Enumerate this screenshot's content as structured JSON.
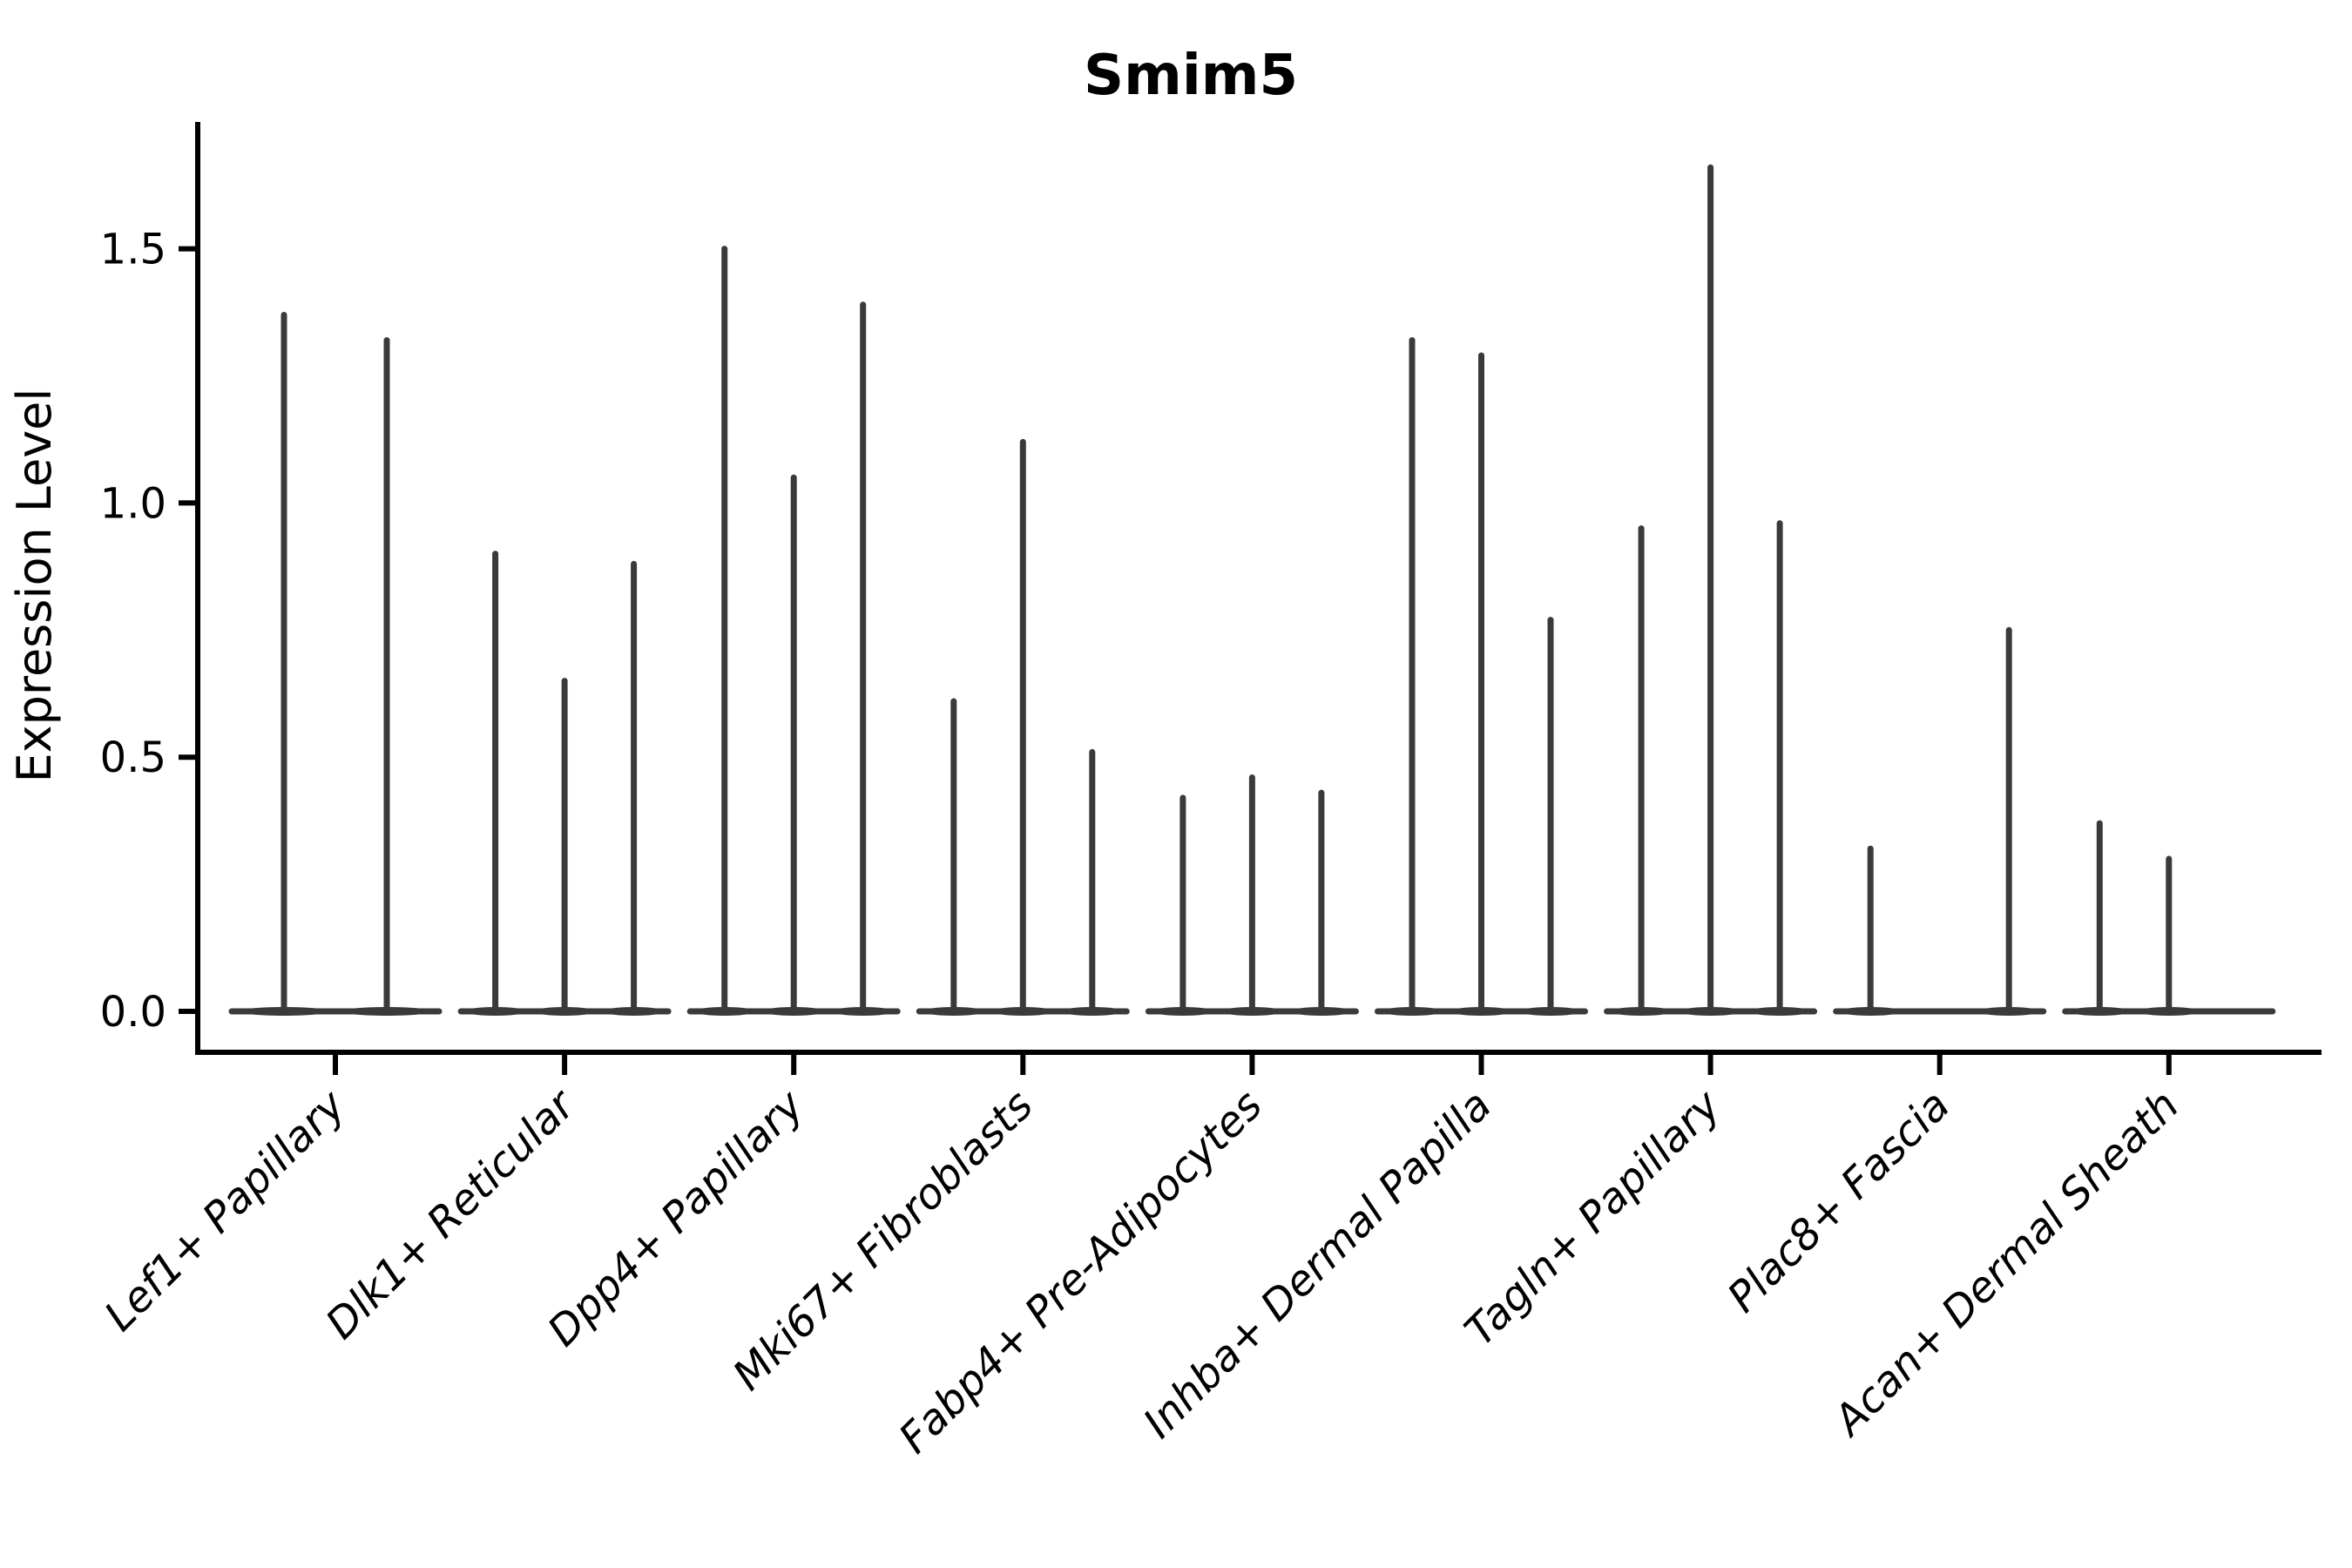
{
  "title": "Smim5",
  "colors": {
    "spike": "#3a3a3a",
    "axis": "#000000",
    "text": "#000000",
    "background": "#ffffff"
  },
  "chart_data": {
    "type": "violin",
    "title": "Smim5",
    "xlabel": "",
    "ylabel": "Expression Level",
    "ylim": [
      0,
      1.75
    ],
    "yticks": [
      0.0,
      0.5,
      1.0,
      1.5
    ],
    "grid": false,
    "legend": "none",
    "categories": [
      "Lef1+ Papillary",
      "Dlk1+ Reticular",
      "Dpp4+ Papillary",
      "Mki67+ Fibroblasts",
      "Fabp4+ Pre-Adipocytes",
      "Inhba+ Dermal Papilla",
      "Tagln+ Papillary",
      "Plac8+ Fascia",
      "Acan+ Dermal Sheath"
    ],
    "groups": [
      {
        "category": "Lef1+ Papillary",
        "n_slots": 2,
        "violins": [
          {
            "slot": 0,
            "max": 1.37
          },
          {
            "slot": 1,
            "max": 1.32
          }
        ]
      },
      {
        "category": "Dlk1+ Reticular",
        "n_slots": 3,
        "violins": [
          {
            "slot": 0,
            "max": 0.9
          },
          {
            "slot": 1,
            "max": 0.65
          },
          {
            "slot": 2,
            "max": 0.88
          }
        ]
      },
      {
        "category": "Dpp4+ Papillary",
        "n_slots": 3,
        "violins": [
          {
            "slot": 0,
            "max": 1.5
          },
          {
            "slot": 1,
            "max": 1.05
          },
          {
            "slot": 2,
            "max": 1.39
          }
        ]
      },
      {
        "category": "Mki67+ Fibroblasts",
        "n_slots": 3,
        "violins": [
          {
            "slot": 0,
            "max": 0.61
          },
          {
            "slot": 1,
            "max": 1.12
          },
          {
            "slot": 2,
            "max": 0.51
          }
        ]
      },
      {
        "category": "Fabp4+ Pre-Adipocytes",
        "n_slots": 3,
        "violins": [
          {
            "slot": 0,
            "max": 0.42
          },
          {
            "slot": 1,
            "max": 0.46
          },
          {
            "slot": 2,
            "max": 0.43
          }
        ]
      },
      {
        "category": "Inhba+ Dermal Papilla",
        "n_slots": 3,
        "violins": [
          {
            "slot": 0,
            "max": 1.32
          },
          {
            "slot": 1,
            "max": 1.29
          },
          {
            "slot": 2,
            "max": 0.77
          }
        ]
      },
      {
        "category": "Tagln+ Papillary",
        "n_slots": 3,
        "violins": [
          {
            "slot": 0,
            "max": 0.95
          },
          {
            "slot": 1,
            "max": 1.66
          },
          {
            "slot": 2,
            "max": 0.96
          }
        ]
      },
      {
        "category": "Plac8+ Fascia",
        "n_slots": 3,
        "violins": [
          {
            "slot": 0,
            "max": 0.32
          },
          {
            "slot": 2,
            "max": 0.75
          }
        ]
      },
      {
        "category": "Acan+ Dermal Sheath",
        "n_slots": 3,
        "violins": [
          {
            "slot": 0,
            "max": 0.37
          },
          {
            "slot": 1,
            "max": 0.3
          }
        ]
      }
    ]
  }
}
